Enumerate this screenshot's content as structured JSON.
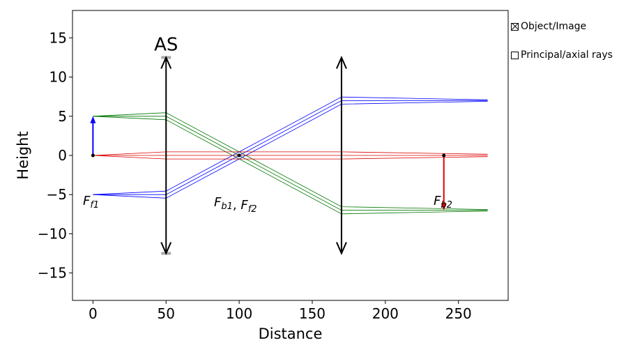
{
  "legend": {
    "items": [
      {
        "label": "Object/Image",
        "checked": true
      },
      {
        "label": "Principal/axial rays",
        "checked": false
      }
    ]
  },
  "chart_data": {
    "type": "line",
    "title": "",
    "xlabel": "Distance",
    "ylabel": "Height",
    "xlim": [
      -14,
      284
    ],
    "ylim": [
      -18.5,
      18.5
    ],
    "xticks": [
      0,
      50,
      100,
      150,
      200,
      250
    ],
    "yticks": [
      -15,
      -10,
      -5,
      0,
      5,
      10,
      15
    ],
    "grid": false,
    "colors": {
      "object_arrow": "#0000ff",
      "image_arrow": "#dd0000",
      "lens": "#000000",
      "stop": "#aaaaaa",
      "ray_blue": "#0000ff",
      "ray_green": "#007700",
      "ray_red": "#dd0000"
    },
    "lenses": [
      {
        "x": 50,
        "half_height": 12.5,
        "label": "AS",
        "stop": true
      },
      {
        "x": 170,
        "half_height": 12.5,
        "label": "",
        "stop": false
      }
    ],
    "object": {
      "x": 0,
      "y_from": 0,
      "y_to": 5
    },
    "image": {
      "x": 240,
      "y_from": 0,
      "y_to": -7
    },
    "focal_points": [
      {
        "x": 0,
        "y": 0,
        "label": "F_{f1}"
      },
      {
        "x": 100,
        "y": 0,
        "label": "F_{b1}, F_{f2}"
      },
      {
        "x": 240,
        "y": 0,
        "label": "F_{b2}"
      }
    ],
    "series": [
      {
        "name": "",
        "color": "ray_green",
        "x": [
          0,
          50,
          100,
          170,
          270
        ],
        "y": [
          5,
          5.45,
          0.45,
          -6.55,
          -6.9
        ]
      },
      {
        "name": "",
        "color": "ray_green",
        "x": [
          0,
          50,
          100,
          170,
          270
        ],
        "y": [
          5,
          5.0,
          0,
          -7.0,
          -7.0
        ]
      },
      {
        "name": "",
        "color": "ray_green",
        "x": [
          0,
          50,
          100,
          170,
          270
        ],
        "y": [
          5,
          4.55,
          -0.45,
          -7.45,
          -7.1
        ]
      },
      {
        "name": "",
        "color": "ray_blue",
        "x": [
          0,
          50,
          100,
          170,
          270
        ],
        "y": [
          -5,
          -4.55,
          0.45,
          7.45,
          7.1
        ]
      },
      {
        "name": "",
        "color": "ray_blue",
        "x": [
          0,
          50,
          100,
          170,
          270
        ],
        "y": [
          -5,
          -5.0,
          0,
          7.0,
          7.0
        ]
      },
      {
        "name": "",
        "color": "ray_blue",
        "x": [
          0,
          50,
          100,
          170,
          270
        ],
        "y": [
          -5,
          -5.45,
          -0.45,
          6.55,
          6.9
        ]
      },
      {
        "name": "",
        "color": "ray_red",
        "x": [
          0,
          50,
          100,
          170,
          270
        ],
        "y": [
          0,
          0.45,
          0.45,
          0.45,
          0.15
        ]
      },
      {
        "name": "",
        "color": "ray_red",
        "x": [
          0,
          50,
          100,
          170,
          270
        ],
        "y": [
          0,
          0,
          0,
          0,
          0
        ]
      },
      {
        "name": "",
        "color": "ray_red",
        "x": [
          0,
          50,
          100,
          170,
          270
        ],
        "y": [
          0,
          -0.45,
          -0.45,
          -0.45,
          -0.15
        ]
      }
    ]
  }
}
